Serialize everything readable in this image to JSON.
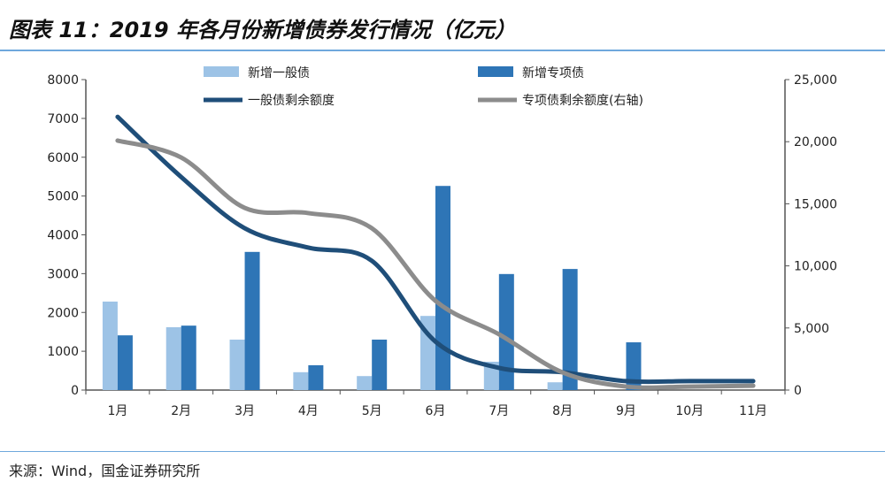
{
  "title": "图表 11：2019 年各月份新增债券发行情况（亿元）",
  "source": "来源：Wind，国金证券研究所",
  "chart_data": {
    "type": "bar+line",
    "categories": [
      "1月",
      "2月",
      "3月",
      "4月",
      "5月",
      "6月",
      "7月",
      "8月",
      "9月",
      "10月",
      "11月"
    ],
    "ylim": [
      0,
      8000
    ],
    "yticks": [
      0,
      1000,
      2000,
      3000,
      4000,
      5000,
      6000,
      7000,
      8000
    ],
    "y2lim": [
      0,
      25000
    ],
    "y2ticks": [
      "0",
      "5,000",
      "10,000",
      "15,000",
      "20,000",
      "25,000"
    ],
    "legend_placement": "top",
    "series": [
      {
        "name": "新增一般债",
        "type": "bar",
        "axis": "left",
        "color": "#9dc3e6",
        "values": [
          2280,
          1620,
          1300,
          460,
          360,
          1910,
          730,
          200,
          0,
          0,
          0
        ]
      },
      {
        "name": "新增专项债",
        "type": "bar",
        "axis": "left",
        "color": "#2e75b6",
        "values": [
          1410,
          1660,
          3560,
          640,
          1300,
          5260,
          2990,
          3120,
          1230,
          0,
          0
        ]
      },
      {
        "name": "一般债剩余额度",
        "type": "line",
        "axis": "left",
        "color": "#1f4e79",
        "values": [
          7040,
          5490,
          4170,
          3670,
          3330,
          1250,
          570,
          460,
          230,
          230,
          230
        ]
      },
      {
        "name": "专项债剩余额度(右轴)",
        "type": "line",
        "axis": "right",
        "color": "#8c8c8c",
        "values": [
          20090,
          18730,
          14670,
          14250,
          13030,
          7190,
          4490,
          1420,
          280,
          280,
          350
        ]
      }
    ]
  }
}
